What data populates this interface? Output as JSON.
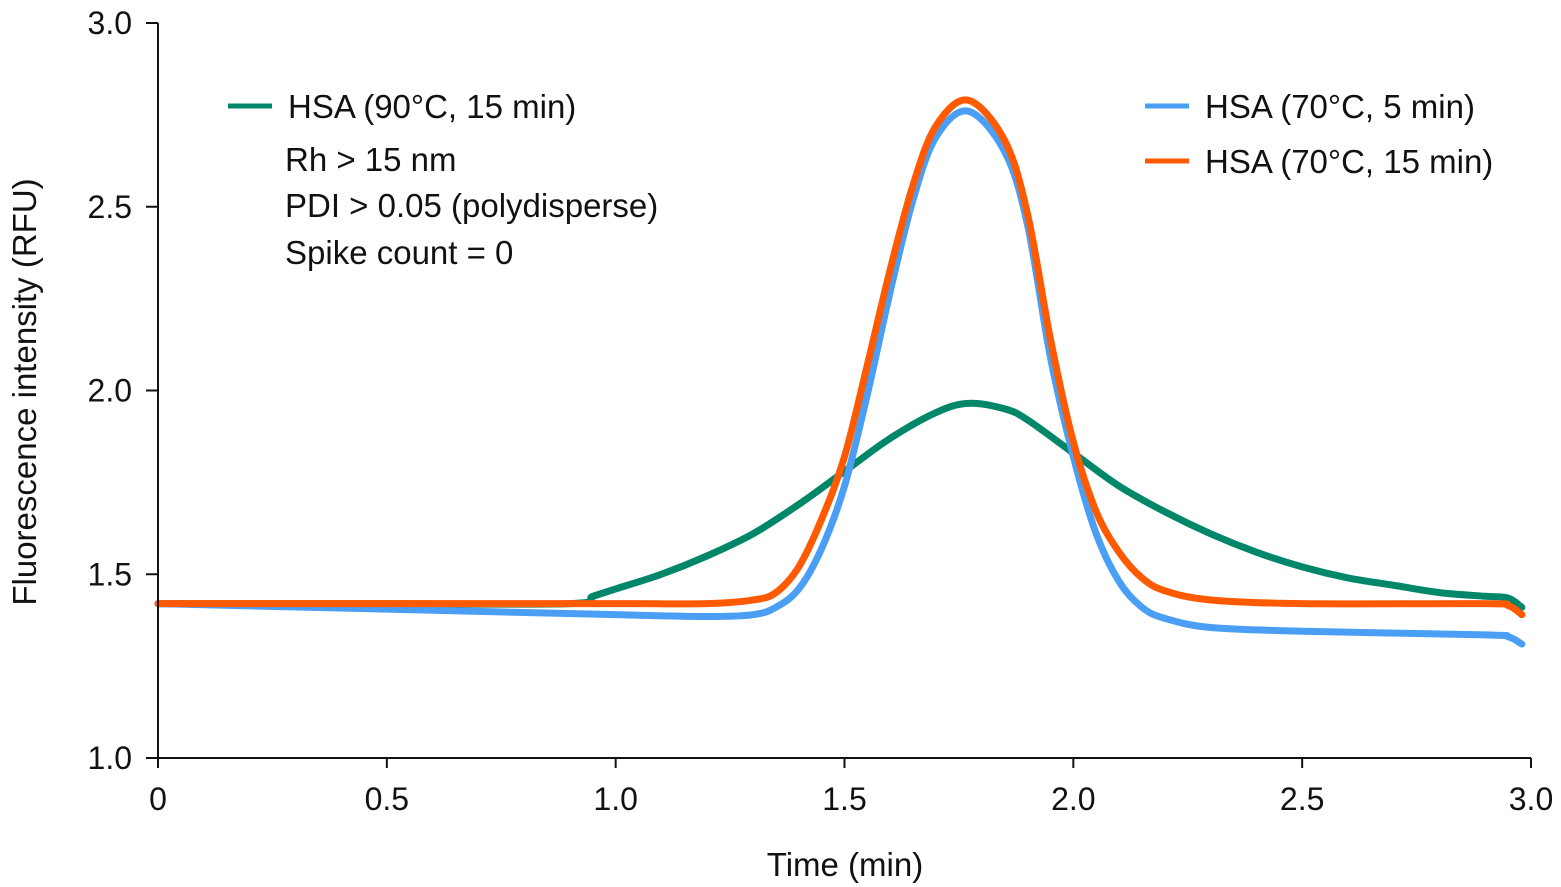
{
  "chart_data": {
    "type": "line",
    "xlabel": "Time (min)",
    "ylabel": "Fluorescence intensity (RFU)",
    "xlim": [
      0,
      3.0
    ],
    "ylim": [
      1.0,
      3.0
    ],
    "xticks": [
      0,
      0.5,
      1.0,
      1.5,
      2.0,
      2.5,
      3.0
    ],
    "xtick_labels": [
      "0",
      "0.5",
      "1.0",
      "1.5",
      "2.0",
      "2.5",
      "3.0"
    ],
    "yticks": [
      1.0,
      1.5,
      2.0,
      2.5,
      3.0
    ],
    "ytick_labels": [
      "1.0",
      "1.5",
      "2.0",
      "2.5",
      "3.0"
    ],
    "grid": false,
    "annotations": [
      "Rh > 15 nm",
      "PDI > 0.05 (polydisperse)",
      "Spike count = 0"
    ],
    "series": [
      {
        "name": "HSA (90°C, 15 min)",
        "color": "#00876a",
        "legend": "top-left",
        "x": [
          0,
          0.5,
          0.9,
          0.95,
          1.0,
          1.1,
          1.2,
          1.3,
          1.4,
          1.5,
          1.6,
          1.7,
          1.77,
          1.85,
          1.9,
          2.0,
          2.1,
          2.2,
          2.3,
          2.4,
          2.5,
          2.6,
          2.7,
          2.8,
          2.9,
          2.95,
          2.98
        ],
        "y": [
          1.42,
          1.42,
          1.42,
          1.44,
          1.46,
          1.5,
          1.55,
          1.61,
          1.69,
          1.78,
          1.87,
          1.94,
          1.965,
          1.95,
          1.92,
          1.83,
          1.74,
          1.67,
          1.61,
          1.56,
          1.52,
          1.49,
          1.47,
          1.45,
          1.44,
          1.435,
          1.41
        ]
      },
      {
        "name": "HSA (70°C, 5 min)",
        "color": "#4a9ff5",
        "legend": "top-right",
        "x": [
          0,
          0.5,
          1.0,
          1.2,
          1.3,
          1.35,
          1.4,
          1.45,
          1.5,
          1.55,
          1.6,
          1.65,
          1.7,
          1.77,
          1.85,
          1.9,
          1.95,
          2.0,
          2.05,
          2.1,
          2.15,
          2.2,
          2.3,
          2.5,
          2.9,
          2.95,
          2.98
        ],
        "y": [
          1.42,
          1.405,
          1.39,
          1.385,
          1.39,
          1.41,
          1.46,
          1.57,
          1.74,
          1.99,
          2.27,
          2.52,
          2.69,
          2.76,
          2.65,
          2.45,
          2.09,
          1.82,
          1.61,
          1.48,
          1.41,
          1.38,
          1.355,
          1.345,
          1.335,
          1.33,
          1.31
        ]
      },
      {
        "name": "HSA (70°C, 15 min)",
        "color": "#ff5a00",
        "legend": "top-right",
        "x": [
          0,
          0.5,
          1.0,
          1.2,
          1.3,
          1.35,
          1.4,
          1.45,
          1.5,
          1.55,
          1.6,
          1.65,
          1.7,
          1.77,
          1.85,
          1.9,
          1.95,
          2.0,
          2.05,
          2.1,
          2.15,
          2.2,
          2.3,
          2.5,
          2.9,
          2.95,
          2.98
        ],
        "y": [
          1.42,
          1.42,
          1.42,
          1.42,
          1.43,
          1.45,
          1.52,
          1.65,
          1.82,
          2.07,
          2.33,
          2.56,
          2.72,
          2.79,
          2.68,
          2.48,
          2.14,
          1.86,
          1.67,
          1.56,
          1.49,
          1.455,
          1.43,
          1.42,
          1.42,
          1.415,
          1.39
        ]
      }
    ]
  }
}
